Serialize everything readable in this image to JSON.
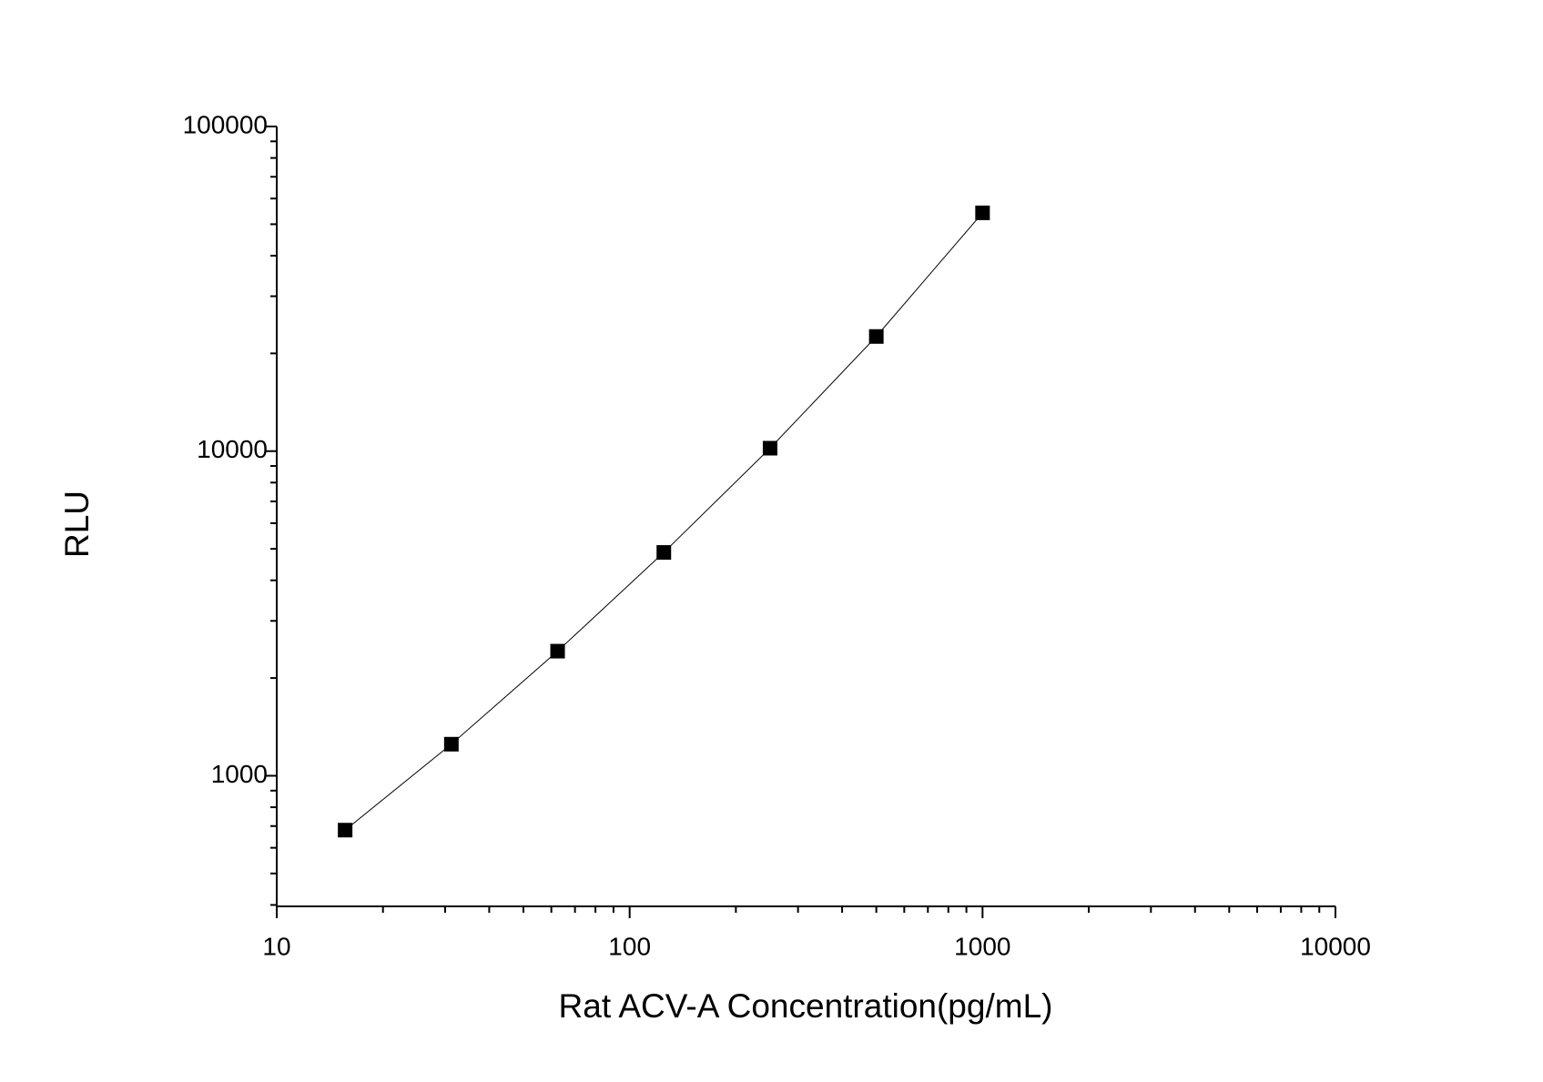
{
  "chart_data": {
    "type": "scatter",
    "x_label": "Rat ACV-A Concentration(pg/mL)",
    "y_label": "RLU",
    "xlog": true,
    "ylog": true,
    "xlim": [
      10,
      10000
    ],
    "ylim": [
      396,
      100000
    ],
    "xticks": [
      10,
      100,
      1000,
      10000
    ],
    "yticks": [
      1000,
      10000,
      100000
    ],
    "series": [
      {
        "color": "#000000",
        "marker": "square",
        "line": true,
        "x": [
          15.625,
          31.25,
          62.5,
          125,
          250,
          500,
          1000
        ],
        "values": [
          680,
          1251,
          2420,
          4875,
          10210,
          22550,
          54200
        ]
      }
    ]
  }
}
